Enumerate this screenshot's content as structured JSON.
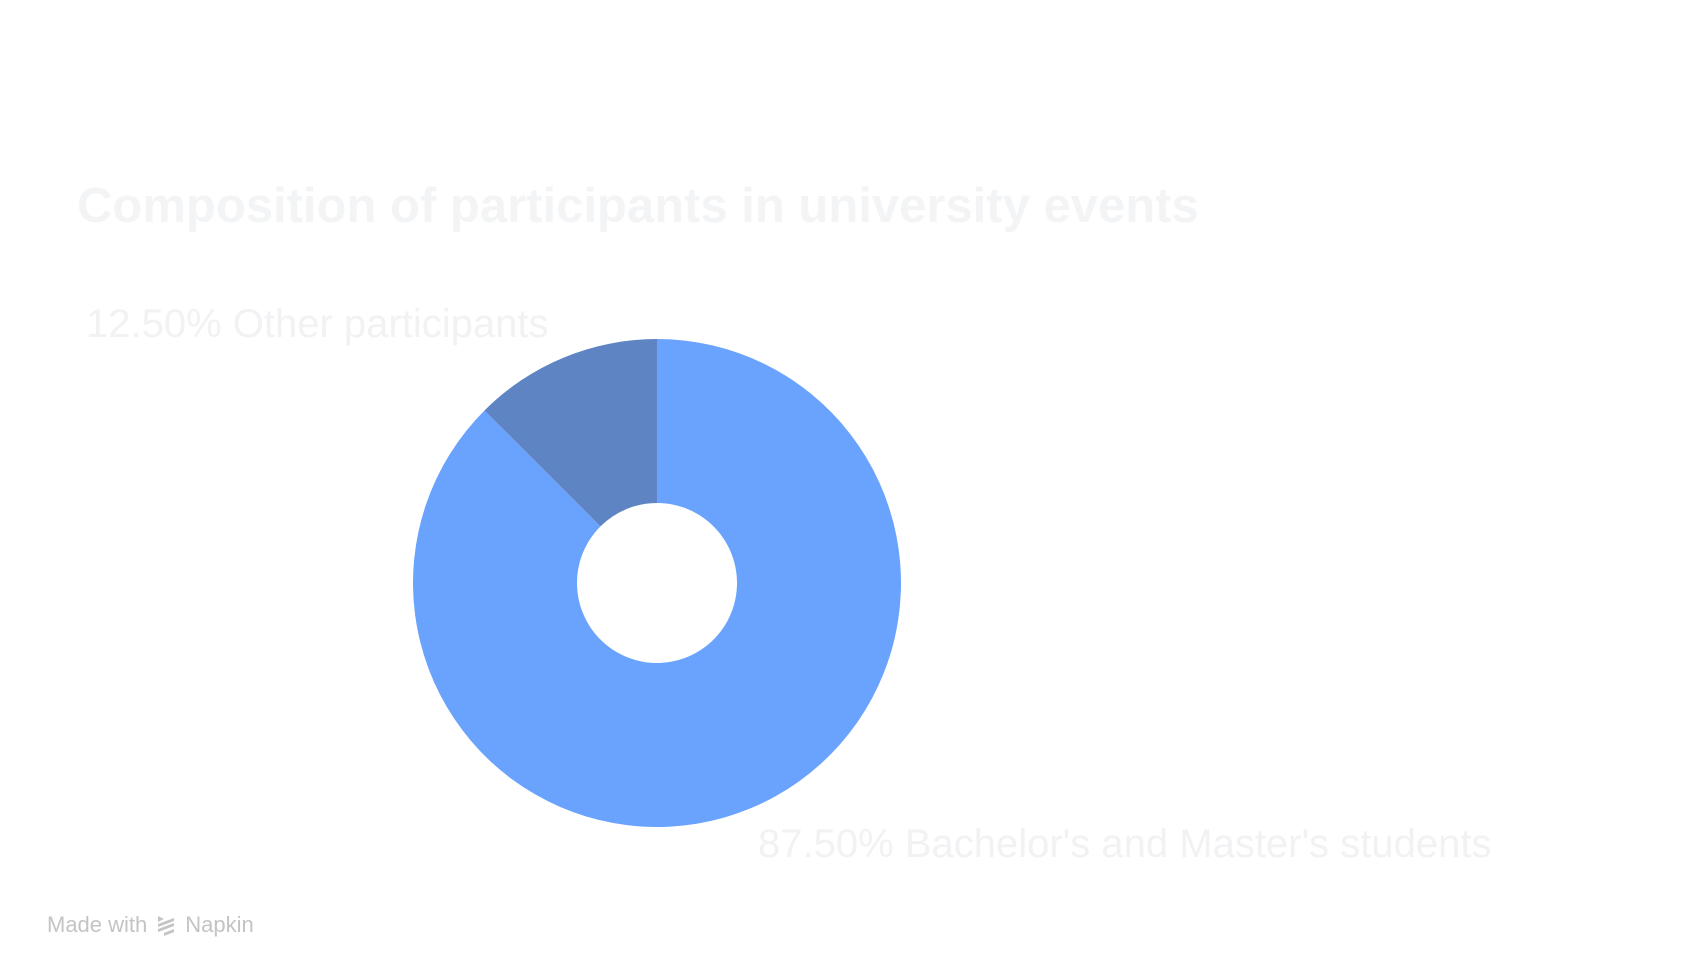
{
  "chart_data": {
    "type": "pie",
    "title": "Composition of participants in university events",
    "donut": true,
    "start_angle_deg": 0,
    "direction": "clockwise",
    "slices": [
      {
        "label": "Bachelor's and Master's students",
        "value": 87.5,
        "display": "87.50% Bachelor's and Master's students",
        "color": "#6aa3fd"
      },
      {
        "label": "Other participants",
        "value": 12.5,
        "display": "12.50% Other participants",
        "color": "#5e84c4"
      }
    ]
  },
  "watermark": {
    "prefix": "Made with",
    "brand": "Napkin",
    "icon": "napkin-logo-icon",
    "color": "#c4c4c4"
  }
}
